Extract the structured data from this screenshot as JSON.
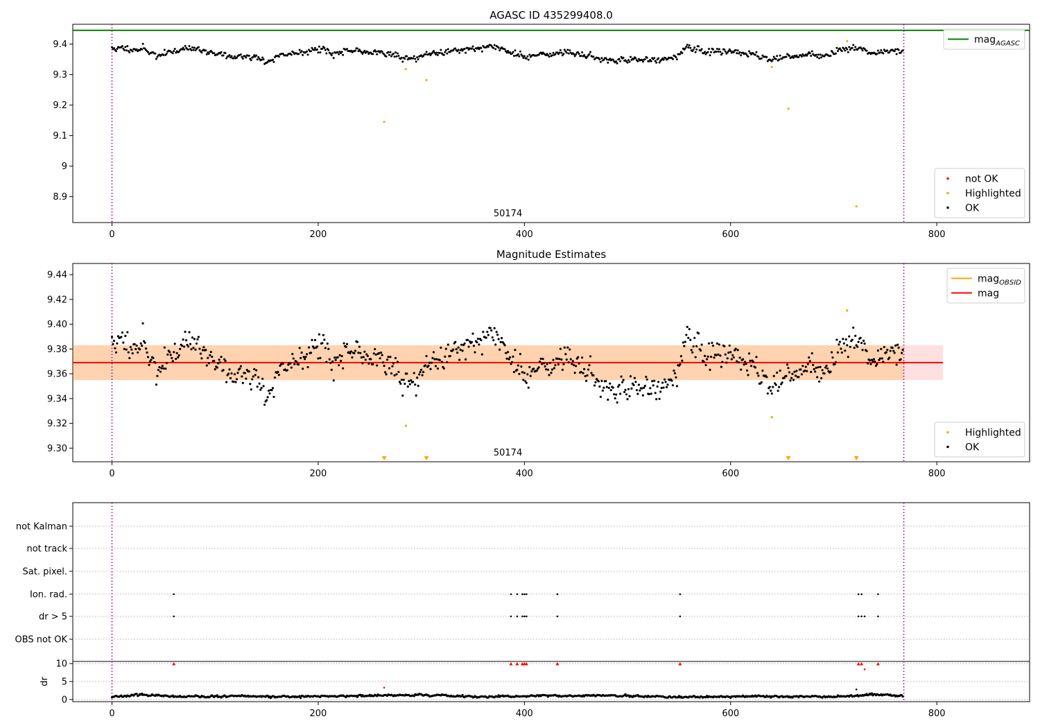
{
  "chart_data": [
    {
      "type": "scatter",
      "title": "AGASC ID 435299408.0",
      "xlim": [
        -38,
        890
      ],
      "ylim": [
        8.815,
        9.465
      ],
      "xticks": [
        0,
        200,
        400,
        600,
        800
      ],
      "yticks": [
        8.9,
        9.0,
        9.1,
        9.2,
        9.3,
        9.4
      ],
      "grid": false,
      "legend_upper": {
        "position": "top-right",
        "entries": [
          {
            "label": "mag",
            "sub": "AGASC",
            "color": "#008000",
            "kind": "line"
          }
        ]
      },
      "legend_lower": {
        "position": "bottom-right",
        "entries": [
          {
            "label": "not OK",
            "color": "#ff0000",
            "kind": "dot"
          },
          {
            "label": "Highlighted",
            "color": "#ffa500",
            "kind": "dot"
          },
          {
            "label": "OK",
            "color": "#000000",
            "kind": "dot"
          }
        ]
      },
      "obsid_label": {
        "text": "50174",
        "x": 384
      },
      "obs_boundaries": [
        0,
        768
      ],
      "agasc_mag": 9.445,
      "highlighted": [
        [
          264,
          9.145
        ],
        [
          285,
          9.318
        ],
        [
          305,
          9.282
        ],
        [
          640,
          9.325
        ],
        [
          656,
          9.188
        ],
        [
          713,
          9.41
        ],
        [
          722,
          8.868
        ]
      ],
      "ok_series": {
        "n": 768,
        "segments": [
          [
            0,
            9.385
          ],
          [
            30,
            9.385
          ],
          [
            45,
            9.36
          ],
          [
            60,
            9.38
          ],
          [
            80,
            9.385
          ],
          [
            100,
            9.37
          ],
          [
            115,
            9.36
          ],
          [
            140,
            9.355
          ],
          [
            150,
            9.34
          ],
          [
            160,
            9.36
          ],
          [
            190,
            9.38
          ],
          [
            205,
            9.385
          ],
          [
            215,
            9.37
          ],
          [
            235,
            9.375
          ],
          [
            255,
            9.375
          ],
          [
            270,
            9.37
          ],
          [
            285,
            9.35
          ],
          [
            300,
            9.36
          ],
          [
            320,
            9.375
          ],
          [
            345,
            9.385
          ],
          [
            375,
            9.39
          ],
          [
            395,
            9.36
          ],
          [
            420,
            9.365
          ],
          [
            440,
            9.375
          ],
          [
            460,
            9.36
          ],
          [
            480,
            9.35
          ],
          [
            500,
            9.345
          ],
          [
            525,
            9.35
          ],
          [
            550,
            9.36
          ],
          [
            560,
            9.39
          ],
          [
            575,
            9.375
          ],
          [
            600,
            9.38
          ],
          [
            620,
            9.365
          ],
          [
            640,
            9.35
          ],
          [
            660,
            9.36
          ],
          [
            690,
            9.36
          ],
          [
            705,
            9.38
          ],
          [
            720,
            9.39
          ],
          [
            740,
            9.37
          ],
          [
            768,
            9.38
          ]
        ],
        "noise": 0.012
      }
    },
    {
      "type": "scatter",
      "title": "Magnitude Estimates",
      "xlim": [
        -38,
        890
      ],
      "ylim": [
        9.289,
        9.449
      ],
      "xticks": [
        0,
        200,
        400,
        600,
        800
      ],
      "yticks": [
        9.3,
        9.32,
        9.34,
        9.36,
        9.38,
        9.4,
        9.42,
        9.44
      ],
      "ytick_labels": [
        "9.30",
        "9.32",
        "9.34",
        "9.36",
        "9.38",
        "9.40",
        "9.42",
        "9.44"
      ],
      "grid": false,
      "legend_upper": {
        "position": "top-right",
        "entries": [
          {
            "label": "mag",
            "sub": "OBSID",
            "color": "#ffa500",
            "kind": "line"
          },
          {
            "label": "mag",
            "color": "#ff0000",
            "kind": "line"
          }
        ]
      },
      "legend_lower": {
        "position": "bottom-right",
        "entries": [
          {
            "label": "Highlighted",
            "color": "#ffa500",
            "kind": "dot"
          },
          {
            "label": "OK",
            "color": "#000000",
            "kind": "dot"
          }
        ]
      },
      "obsid_label": {
        "text": "50174",
        "x": 384
      },
      "obs_boundaries": [
        0,
        768
      ],
      "mag": 9.369,
      "band_obsid": {
        "x": [
          -38,
          768
        ],
        "y": [
          9.355,
          9.383
        ],
        "color": "#ffa500"
      },
      "band_mag": {
        "x": [
          -38,
          806
        ],
        "y": [
          9.355,
          9.383
        ],
        "color": "#ff0000"
      },
      "highlighted": [
        [
          285,
          9.318
        ],
        [
          640,
          9.325
        ],
        [
          713,
          9.411
        ]
      ],
      "highlighted_clipped": [
        264,
        305,
        656,
        722
      ],
      "ok_series": {
        "n": 768,
        "segments": [
          [
            0,
            9.385
          ],
          [
            30,
            9.385
          ],
          [
            45,
            9.36
          ],
          [
            60,
            9.38
          ],
          [
            80,
            9.385
          ],
          [
            100,
            9.37
          ],
          [
            115,
            9.36
          ],
          [
            140,
            9.355
          ],
          [
            150,
            9.34
          ],
          [
            160,
            9.36
          ],
          [
            190,
            9.38
          ],
          [
            205,
            9.385
          ],
          [
            215,
            9.37
          ],
          [
            235,
            9.375
          ],
          [
            255,
            9.375
          ],
          [
            270,
            9.37
          ],
          [
            285,
            9.35
          ],
          [
            300,
            9.36
          ],
          [
            320,
            9.375
          ],
          [
            345,
            9.385
          ],
          [
            375,
            9.39
          ],
          [
            395,
            9.36
          ],
          [
            420,
            9.365
          ],
          [
            440,
            9.375
          ],
          [
            460,
            9.36
          ],
          [
            480,
            9.35
          ],
          [
            500,
            9.345
          ],
          [
            525,
            9.35
          ],
          [
            550,
            9.36
          ],
          [
            560,
            9.39
          ],
          [
            575,
            9.375
          ],
          [
            600,
            9.38
          ],
          [
            620,
            9.365
          ],
          [
            640,
            9.35
          ],
          [
            660,
            9.36
          ],
          [
            690,
            9.36
          ],
          [
            705,
            9.38
          ],
          [
            720,
            9.39
          ],
          [
            740,
            9.37
          ],
          [
            768,
            9.38
          ]
        ],
        "noise": 0.012
      }
    },
    {
      "type": "scatter",
      "title": "",
      "xlim": [
        -38,
        890
      ],
      "flag_rows": [
        "not Kalman",
        "not track",
        "Sat. pixel.",
        "Ion. rad.",
        "dr > 5",
        "OBS not OK"
      ],
      "flag_points": {
        "Ion. rad.": [
          60,
          387,
          393,
          398,
          400,
          402,
          432,
          551,
          724,
          727,
          743
        ],
        "dr > 5": [
          60,
          387,
          393,
          398,
          400,
          402,
          432,
          551,
          724,
          727,
          730,
          743
        ]
      },
      "grid": true,
      "obs_boundaries": [
        0,
        768
      ]
    },
    {
      "type": "scatter",
      "title": "",
      "xlim": [
        -38,
        890
      ],
      "ylim": [
        -0.6,
        10.6
      ],
      "xticks": [
        0,
        200,
        400,
        600,
        800
      ],
      "yticks": [
        0,
        5,
        10
      ],
      "ylabel": "dr",
      "grid": true,
      "obs_boundaries": [
        0,
        768
      ],
      "dr_clipped": [
        60,
        387,
        393,
        398,
        400,
        402,
        432,
        551,
        724,
        727,
        743
      ],
      "dr_red": [
        [
          264,
          3.3
        ],
        [
          730,
          8.4
        ]
      ],
      "dr_black": [
        [
          722,
          2.8
        ]
      ],
      "dr_series": {
        "n": 768,
        "segments": [
          [
            0,
            0.8
          ],
          [
            30,
            1.4
          ],
          [
            60,
            0.7
          ],
          [
            120,
            0.9
          ],
          [
            180,
            0.8
          ],
          [
            240,
            1.0
          ],
          [
            300,
            1.3
          ],
          [
            360,
            0.7
          ],
          [
            420,
            1.0
          ],
          [
            480,
            1.1
          ],
          [
            540,
            0.6
          ],
          [
            600,
            0.8
          ],
          [
            660,
            0.9
          ],
          [
            710,
            0.8
          ],
          [
            740,
            1.4
          ],
          [
            768,
            0.9
          ]
        ],
        "noise": 0.3
      }
    }
  ]
}
